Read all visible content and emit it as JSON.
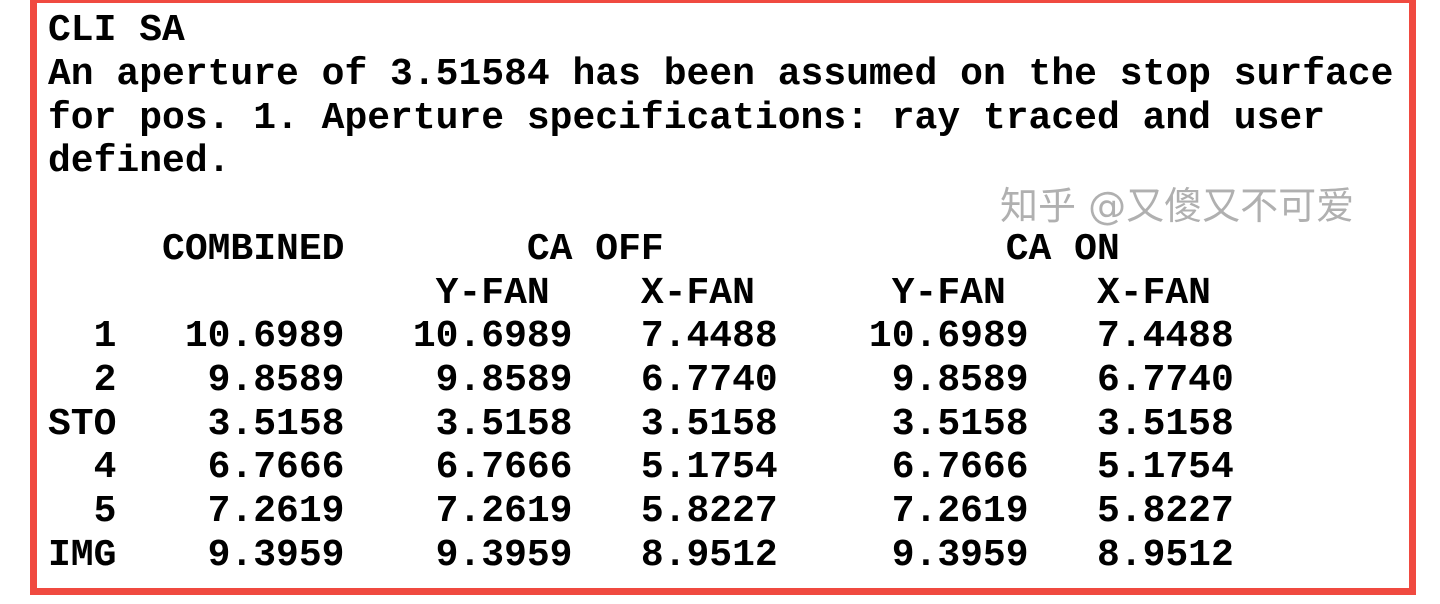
{
  "output": {
    "command": "CLI SA",
    "message_lines": [
      "An aperture of 3.51584 has been assumed on the stop surface",
      "for pos. 1. Aperture specifications: ray traced and user",
      "defined."
    ]
  },
  "table": {
    "group_headers": [
      "COMBINED",
      "CA OFF",
      "CA ON"
    ],
    "sub_headers": [
      "Y-FAN",
      "X-FAN",
      "Y-FAN",
      "X-FAN"
    ],
    "rows": [
      {
        "surface": "1",
        "combined": "10.6989",
        "off_y": "10.6989",
        "off_x": "7.4488",
        "on_y": "10.6989",
        "on_x": "7.4488"
      },
      {
        "surface": "2",
        "combined": "9.8589",
        "off_y": "9.8589",
        "off_x": "6.7740",
        "on_y": "9.8589",
        "on_x": "6.7740"
      },
      {
        "surface": "STO",
        "combined": "3.5158",
        "off_y": "3.5158",
        "off_x": "3.5158",
        "on_y": "3.5158",
        "on_x": "3.5158"
      },
      {
        "surface": "4",
        "combined": "6.7666",
        "off_y": "6.7666",
        "off_x": "5.1754",
        "on_y": "6.7666",
        "on_x": "5.1754"
      },
      {
        "surface": "5",
        "combined": "7.2619",
        "off_y": "7.2619",
        "off_x": "5.8227",
        "on_y": "7.2619",
        "on_x": "5.8227"
      },
      {
        "surface": "IMG",
        "combined": "9.3959",
        "off_y": "9.3959",
        "off_x": "8.9512",
        "on_y": "9.3959",
        "on_x": "8.9512"
      }
    ]
  },
  "watermark": "知乎 @又傻又不可爱",
  "colors": {
    "border": "#f04a40",
    "text": "#000000"
  }
}
